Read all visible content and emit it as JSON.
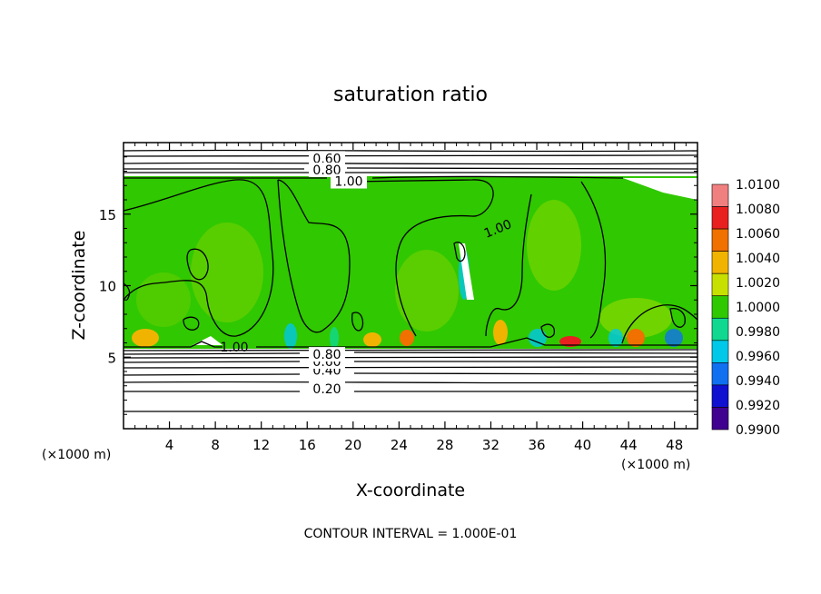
{
  "chart_data": {
    "type": "heatmap",
    "title": "saturation ratio",
    "xlabel": "X-coordinate",
    "ylabel": "Z-coordinate",
    "x_unit": "(×1000 m)",
    "xlim": [
      0,
      50
    ],
    "ylim": [
      0,
      20
    ],
    "x_ticks": [
      "4",
      "8",
      "12",
      "16",
      "20",
      "24",
      "28",
      "32",
      "36",
      "40",
      "44",
      "48"
    ],
    "y_ticks": [
      "5",
      "10",
      "15"
    ],
    "x_tick_values": [
      4,
      8,
      12,
      16,
      20,
      24,
      28,
      32,
      36,
      40,
      44,
      48
    ],
    "y_tick_values": [
      5,
      10,
      15
    ],
    "colorbar": {
      "levels": [
        "1.0100",
        "1.0080",
        "1.0060",
        "1.0040",
        "1.0020",
        "1.0000",
        "0.9980",
        "0.9960",
        "0.9940",
        "0.9920",
        "0.9900"
      ],
      "colors": [
        "#f08080",
        "#e82020",
        "#f07000",
        "#f0b400",
        "#c8e000",
        "#30c800",
        "#10d890",
        "#00c8e8",
        "#1070f0",
        "#1010d0",
        "#400090"
      ]
    },
    "filled_region_z": [
      5.6,
      17.4
    ],
    "contour_levels": [
      {
        "label": "0.20",
        "z": 2.8
      },
      {
        "label": "0.40",
        "z": 4.1
      },
      {
        "label": "0.60",
        "z": 4.7
      },
      {
        "label": "0.80",
        "z": 5.2
      },
      {
        "label": "1.00",
        "z": 5.7
      },
      {
        "label": "0.60",
        "z": 18.9
      },
      {
        "label": "0.80",
        "z": 18.1
      },
      {
        "label": "1.00",
        "z": 17.3
      },
      {
        "label": "1.00",
        "z": 14.0
      }
    ],
    "footer": "CONTOUR INTERVAL = 1.000E-01"
  }
}
